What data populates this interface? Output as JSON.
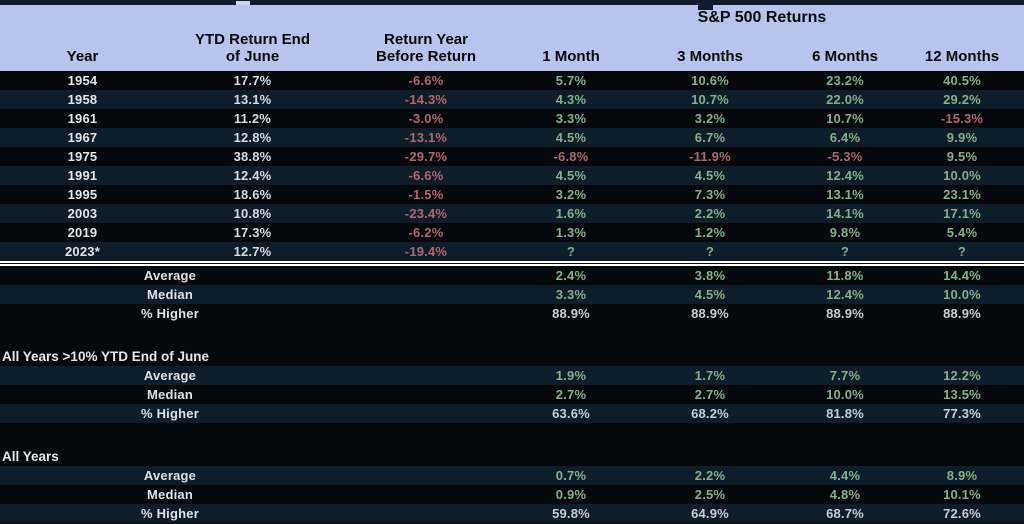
{
  "chart_data": {
    "type": "table",
    "title": "S&P 500 Returns",
    "columns": [
      "Year",
      "YTD Return End\nof June",
      "Return Year\nBefore Return",
      "1 Month",
      "3 Months",
      "6 Months",
      "12 Months"
    ],
    "rows": [
      {
        "type": "data",
        "shade": "black",
        "cells": [
          "1954",
          "17.7%",
          "-6.6%",
          "5.7%",
          "10.6%",
          "23.2%",
          "40.5%"
        ]
      },
      {
        "type": "data",
        "shade": "blue",
        "cells": [
          "1958",
          "13.1%",
          "-14.3%",
          "4.3%",
          "10.7%",
          "22.0%",
          "29.2%"
        ]
      },
      {
        "type": "data",
        "shade": "black",
        "cells": [
          "1961",
          "11.2%",
          "-3.0%",
          "3.3%",
          "3.2%",
          "10.7%",
          "-15.3%"
        ]
      },
      {
        "type": "data",
        "shade": "blue",
        "cells": [
          "1967",
          "12.8%",
          "-13.1%",
          "4.5%",
          "6.7%",
          "6.4%",
          "9.9%"
        ]
      },
      {
        "type": "data",
        "shade": "black",
        "cells": [
          "1975",
          "38.8%",
          "-29.7%",
          "-6.8%",
          "-11.9%",
          "-5.3%",
          "9.5%"
        ]
      },
      {
        "type": "data",
        "shade": "blue",
        "cells": [
          "1991",
          "12.4%",
          "-6.6%",
          "4.5%",
          "4.5%",
          "12.4%",
          "10.0%"
        ]
      },
      {
        "type": "data",
        "shade": "black",
        "cells": [
          "1995",
          "18.6%",
          "-1.5%",
          "3.2%",
          "7.3%",
          "13.1%",
          "23.1%"
        ]
      },
      {
        "type": "data",
        "shade": "blue",
        "cells": [
          "2003",
          "10.8%",
          "-23.4%",
          "1.6%",
          "2.2%",
          "14.1%",
          "17.1%"
        ]
      },
      {
        "type": "data",
        "shade": "black",
        "cells": [
          "2019",
          "17.3%",
          "-6.2%",
          "1.3%",
          "1.2%",
          "9.8%",
          "5.4%"
        ]
      },
      {
        "type": "data",
        "shade": "blue",
        "cells": [
          "2023*",
          "12.7%",
          "-19.4%",
          "?",
          "?",
          "?",
          "?"
        ]
      },
      {
        "type": "separator"
      },
      {
        "type": "summary",
        "shade": "black",
        "label": "Average",
        "value_color": "green",
        "cells": [
          "2.4%",
          "3.8%",
          "11.8%",
          "14.4%"
        ]
      },
      {
        "type": "summary",
        "shade": "blue",
        "label": "Median",
        "value_color": "green",
        "cells": [
          "3.3%",
          "4.5%",
          "12.4%",
          "10.0%"
        ]
      },
      {
        "type": "summary",
        "shade": "black",
        "label": "% Higher",
        "value_color": "gray",
        "cells": [
          "88.9%",
          "88.9%",
          "88.9%",
          "88.9%"
        ]
      },
      {
        "type": "gap"
      },
      {
        "type": "section",
        "shade": "black",
        "label": "All Years >10% YTD End of June"
      },
      {
        "type": "summary",
        "shade": "blue",
        "label": "Average",
        "value_color": "green",
        "cells": [
          "1.9%",
          "1.7%",
          "7.7%",
          "12.2%"
        ]
      },
      {
        "type": "summary",
        "shade": "black",
        "label": "Median",
        "value_color": "green",
        "cells": [
          "2.7%",
          "2.7%",
          "10.0%",
          "13.5%"
        ]
      },
      {
        "type": "summary",
        "shade": "blue",
        "label": "% Higher",
        "value_color": "gray",
        "cells": [
          "63.6%",
          "68.2%",
          "81.8%",
          "77.3%"
        ]
      },
      {
        "type": "gap"
      },
      {
        "type": "section",
        "shade": "black",
        "label": "All Years"
      },
      {
        "type": "summary",
        "shade": "blue",
        "label": "Average",
        "value_color": "green",
        "cells": [
          "0.7%",
          "2.2%",
          "4.4%",
          "8.9%"
        ]
      },
      {
        "type": "summary",
        "shade": "black",
        "label": "Median",
        "value_color": "green",
        "cells": [
          "0.9%",
          "2.5%",
          "4.8%",
          "10.1%"
        ]
      },
      {
        "type": "summary",
        "shade": "blue",
        "label": "% Higher",
        "value_color": "gray",
        "cells": [
          "59.8%",
          "64.9%",
          "68.7%",
          "72.6%"
        ]
      }
    ],
    "colors": {
      "header_bg": "#b7c5ee",
      "row_black": "#04080b",
      "row_blue": "#0d1d29",
      "positive_text": "#7fb287",
      "negative_text": "#b4646b",
      "neutral_text": "#d5dbe0",
      "separator": "#ffffff"
    }
  }
}
